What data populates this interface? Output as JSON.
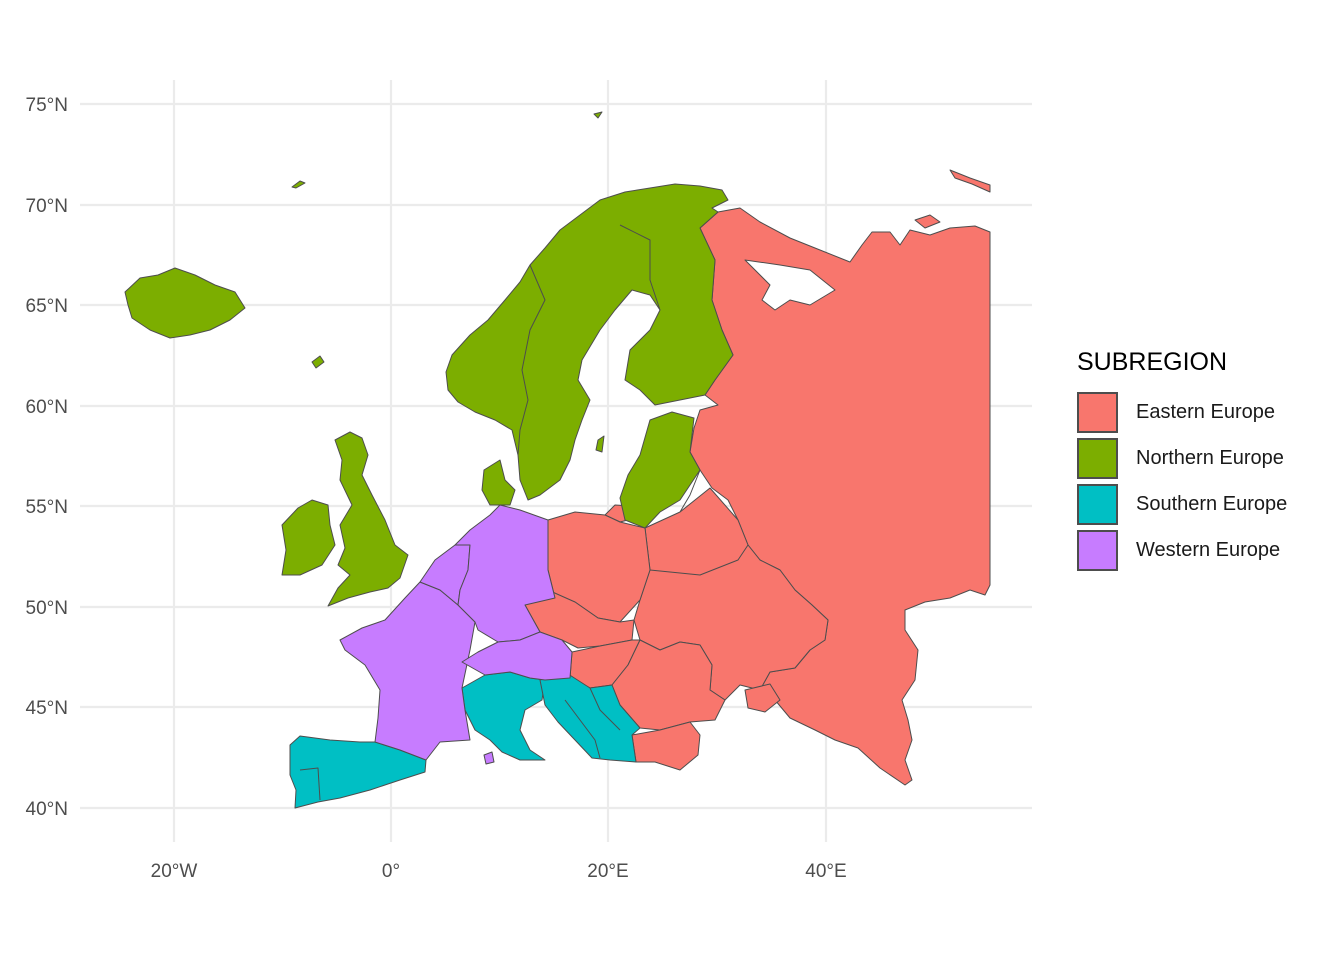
{
  "map": {
    "legend": {
      "title": "SUBREGION",
      "items": [
        {
          "label": "Eastern Europe",
          "color": "#F8766D"
        },
        {
          "label": "Northern Europe",
          "color": "#7CAE00"
        },
        {
          "label": "Southern Europe",
          "color": "#00BFC4"
        },
        {
          "label": "Western Europe",
          "color": "#C77CFF"
        }
      ]
    },
    "axes": {
      "y_ticks": [
        "75°N",
        "70°N",
        "65°N",
        "60°N",
        "55°N",
        "50°N",
        "45°N",
        "40°N"
      ],
      "x_ticks": [
        "20°W",
        "0°",
        "20°E",
        "40°E"
      ]
    },
    "colors": {
      "grid": "#EBEBEB",
      "background": "#FFFFFF",
      "border": "#4D4D4D"
    }
  }
}
